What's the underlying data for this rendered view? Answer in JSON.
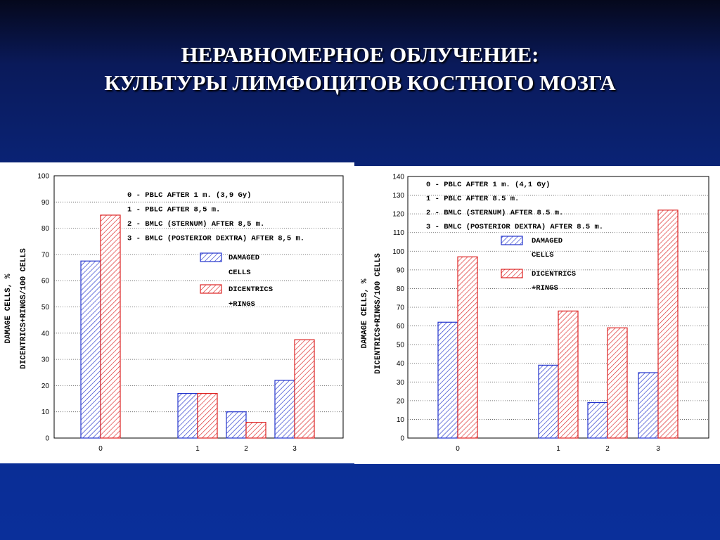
{
  "slide": {
    "title_line1": "НЕРАВНОМЕРНОЕ ОБЛУЧЕНИЕ:",
    "title_line2": "КУЛЬТУРЫ ЛИМФОЦИТОВ КОСТНОГО МОЗГА"
  },
  "colors": {
    "damaged": "#2233cc",
    "dicentrics": "#dd2222",
    "background_top": "#05081c",
    "background_bottom": "#0a2f9a"
  },
  "chart_data": [
    {
      "type": "bar",
      "categories": [
        "0",
        "1",
        "2",
        "3"
      ],
      "series": [
        {
          "name": "DAMAGED CELLS",
          "values": [
            67.5,
            17,
            10,
            22
          ]
        },
        {
          "name": "DICENTRICS +RINGS",
          "values": [
            85,
            17,
            6,
            37.5
          ]
        }
      ],
      "ylabel_line1": "DAMAGE CELLS, %",
      "ylabel_line2": "DICENTRICS+RINGS/100 CELLS",
      "ylim": [
        0,
        100
      ],
      "ytick_step": 10,
      "grid": true,
      "legend_placement": "center-right",
      "legend_labels": [
        [
          "DAMAGED",
          "CELLS"
        ],
        [
          "DICENTRICS",
          "+RINGS"
        ]
      ],
      "annotations": [
        "0 - PBLC AFTER 1 m. (3,9 Gy)",
        "1 - PBLC AFTER 8,5 m.",
        "2 - BMLC (STERNUM) AFTER 8,5 m.",
        "3 - BMLC (POSTERIOR DEXTRA) AFTER 8,5 m."
      ]
    },
    {
      "type": "bar",
      "categories": [
        "0",
        "1",
        "2",
        "3"
      ],
      "series": [
        {
          "name": "DAMAGED CELLS",
          "values": [
            62,
            39,
            19,
            35
          ]
        },
        {
          "name": "DICENTRICS +RINGS",
          "values": [
            97,
            68,
            59,
            122
          ]
        }
      ],
      "ylabel_line1": "DAMAGE CELLS, %",
      "ylabel_line2": "DICENTRICS+RINGS/100 CELLS",
      "ylim": [
        0,
        140
      ],
      "ytick_step": 10,
      "grid": true,
      "legend_placement": "top-center",
      "legend_labels": [
        [
          "DAMAGED",
          "CELLS"
        ],
        [
          "DICENTRICS",
          "+RINGS"
        ]
      ],
      "annotations": [
        "0 - PBLC AFTER 1 m. (4,1 Gy)",
        "1 - PBLC AFTER 8.5 m.",
        "2 - BMLC (STERNUM) AFTER 8.5 m.",
        "3 - BMLC (POSTERIOR DEXTRA) AFTER 8.5 m."
      ]
    }
  ]
}
